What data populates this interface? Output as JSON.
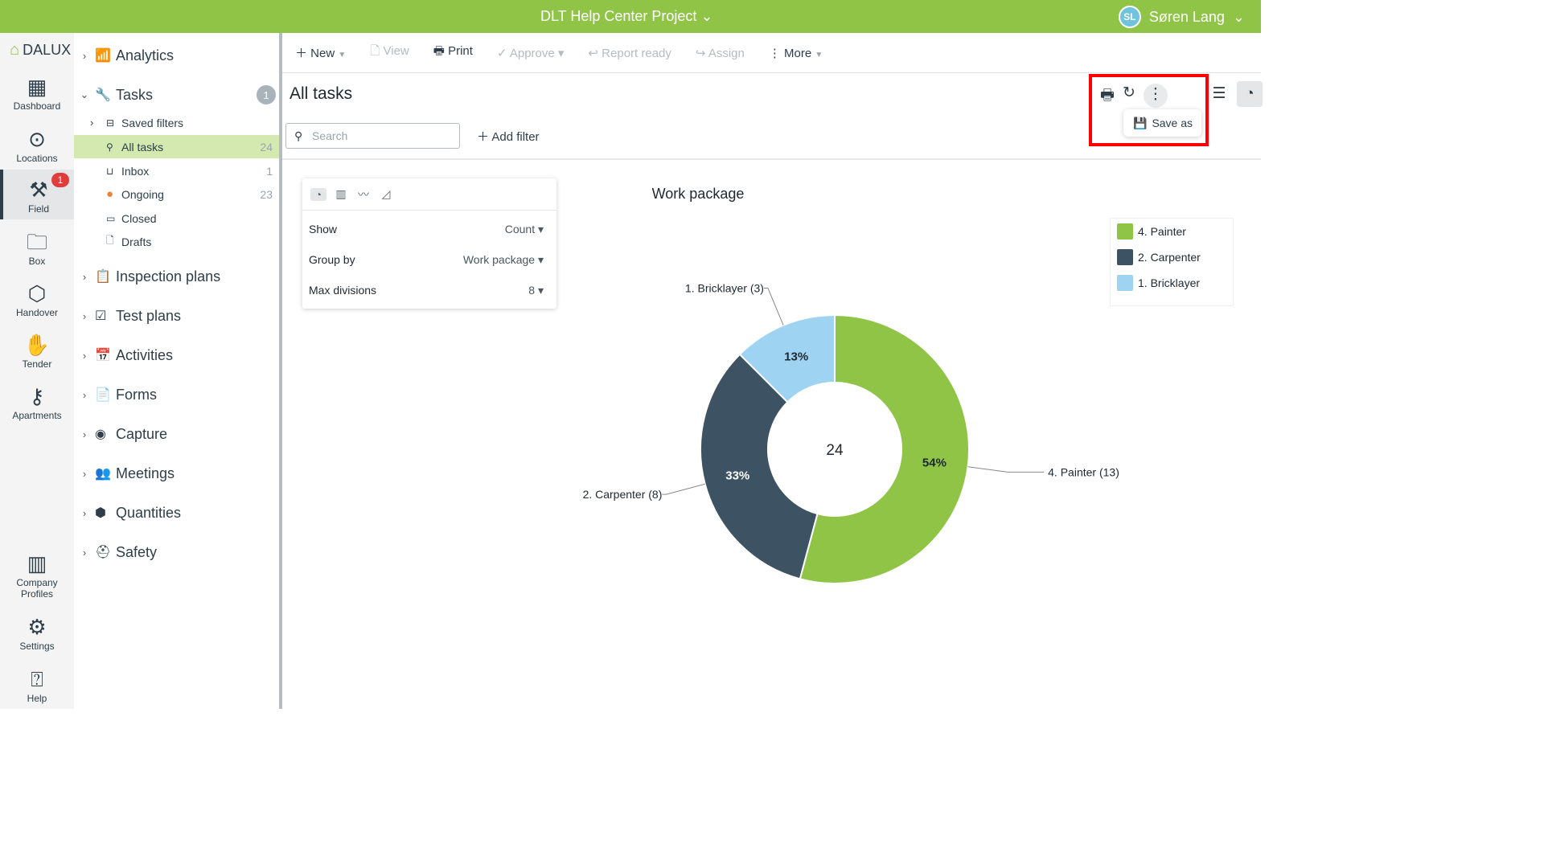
{
  "topbar": {
    "project": "DLT Help Center Project",
    "user_initials": "SL",
    "user_name": "Søren Lang"
  },
  "rail": {
    "logo": "DALUX",
    "items": [
      {
        "label": "Dashboard"
      },
      {
        "label": "Locations"
      },
      {
        "label": "Field",
        "badge": "1"
      },
      {
        "label": "Box"
      },
      {
        "label": "Handover"
      },
      {
        "label": "Tender"
      },
      {
        "label": "Apartments"
      },
      {
        "label": "Company Profiles"
      },
      {
        "label": "Settings"
      },
      {
        "label": "Help"
      }
    ]
  },
  "nav": {
    "analytics": "Analytics",
    "tasks": "Tasks",
    "tasks_count": "1",
    "saved_filters": "Saved filters",
    "sub": [
      {
        "label": "All tasks",
        "count": "24"
      },
      {
        "label": "Inbox",
        "count": "1"
      },
      {
        "label": "Ongoing",
        "count": "23"
      },
      {
        "label": "Closed",
        "count": ""
      },
      {
        "label": "Drafts",
        "count": ""
      }
    ],
    "sections": [
      "Inspection plans",
      "Test plans",
      "Activities",
      "Forms",
      "Capture",
      "Meetings",
      "Quantities",
      "Safety"
    ]
  },
  "toolbar": {
    "new": "New",
    "view": "View",
    "print": "Print",
    "approve": "Approve",
    "report_ready": "Report ready",
    "assign": "Assign",
    "more": "More"
  },
  "page": {
    "title": "All tasks",
    "search_placeholder": "Search",
    "add_filter": "Add filter",
    "save_as": "Save as"
  },
  "config": {
    "show_label": "Show",
    "show_value": "Count",
    "group_label": "Group by",
    "group_value": "Work package",
    "max_label": "Max divisions",
    "max_value": "8"
  },
  "chart_data": {
    "type": "pie",
    "title": "Work package",
    "total": "24",
    "slices": [
      {
        "label": "4. Painter",
        "value": 13,
        "pct": "54%",
        "callout": "4. Painter (13)",
        "color": "#8fc447"
      },
      {
        "label": "2. Carpenter",
        "value": 8,
        "pct": "33%",
        "callout": "2. Carpenter (8)",
        "color": "#3d5363"
      },
      {
        "label": "1. Bricklayer",
        "value": 3,
        "pct": "13%",
        "callout": "1. Bricklayer (3)",
        "color": "#9fd3f2"
      }
    ],
    "legend": [
      "4. Painter",
      "2. Carpenter",
      "1. Bricklayer"
    ],
    "legend_position": "top-right"
  }
}
